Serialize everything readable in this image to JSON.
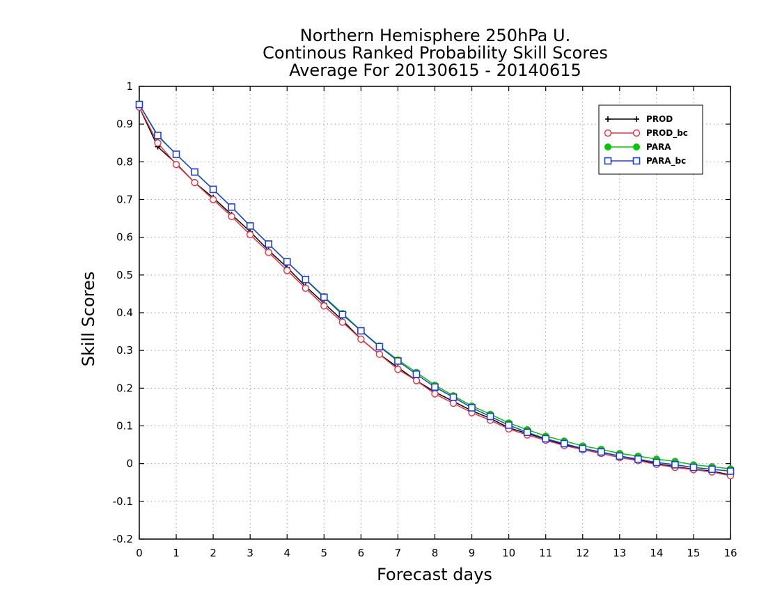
{
  "chart_data": {
    "type": "line",
    "title": [
      "Northern Hemisphere 250hPa U.",
      "Continous Ranked Probability Skill Scores",
      "Average For 20130615 - 20140615"
    ],
    "xlabel": "Forecast days",
    "ylabel": "Skill Scores",
    "xlim": [
      0,
      16
    ],
    "ylim": [
      -0.2,
      1
    ],
    "xticks": [
      0,
      1,
      2,
      3,
      4,
      5,
      6,
      7,
      8,
      9,
      10,
      11,
      12,
      13,
      14,
      15,
      16
    ],
    "xtick_labels": [
      "0",
      "1",
      "2",
      "3",
      "4",
      "5",
      "6",
      "7",
      "8",
      "9",
      "10",
      "11",
      "12",
      "13",
      "14",
      "15",
      "16"
    ],
    "yticks": [
      -0.2,
      -0.1,
      0,
      0.1,
      0.2,
      0.3,
      0.4,
      0.5,
      0.6,
      0.7,
      0.8,
      0.9,
      1
    ],
    "ytick_labels": [
      "-0.2",
      "-0.1",
      "0",
      "0.1",
      "0.2",
      "0.3",
      "0.4",
      "0.5",
      "0.6",
      "0.7",
      "0.8",
      "0.9",
      "1"
    ],
    "grid": true,
    "legend_position": "top-right",
    "x": [
      0,
      0.5,
      1,
      1.5,
      2,
      2.5,
      3,
      3.5,
      4,
      4.5,
      5,
      5.5,
      6,
      6.5,
      7,
      7.5,
      8,
      8.5,
      9,
      9.5,
      10,
      10.5,
      11,
      11.5,
      12,
      12.5,
      13,
      13.5,
      14,
      14.5,
      15,
      15.5,
      16
    ],
    "series": [
      {
        "name": "PROD",
        "color": "#000000",
        "marker": "plus",
        "values": [
          0.945,
          0.84,
          0.795,
          0.745,
          0.705,
          0.66,
          0.615,
          0.565,
          0.52,
          0.47,
          0.425,
          0.38,
          0.33,
          0.29,
          0.255,
          0.22,
          0.19,
          0.165,
          0.14,
          0.12,
          0.095,
          0.08,
          0.065,
          0.05,
          0.04,
          0.03,
          0.02,
          0.01,
          0.0,
          -0.008,
          -0.015,
          -0.02,
          -0.03
        ]
      },
      {
        "name": "PROD_bc",
        "color": "#e8323c",
        "marker": "circle-open",
        "values": [
          0.945,
          0.85,
          0.793,
          0.745,
          0.7,
          0.655,
          0.607,
          0.56,
          0.512,
          0.465,
          0.418,
          0.375,
          0.33,
          0.29,
          0.25,
          0.22,
          0.185,
          0.16,
          0.135,
          0.115,
          0.092,
          0.076,
          0.062,
          0.048,
          0.037,
          0.027,
          0.016,
          0.008,
          -0.002,
          -0.01,
          -0.016,
          -0.022,
          -0.032
        ]
      },
      {
        "name": "PARA",
        "color": "#00c800",
        "marker": "circle-filled",
        "values": [
          0.952,
          0.868,
          0.82,
          0.773,
          0.727,
          0.68,
          0.63,
          0.582,
          0.535,
          0.489,
          0.443,
          0.398,
          0.353,
          0.312,
          0.275,
          0.242,
          0.208,
          0.18,
          0.153,
          0.131,
          0.108,
          0.09,
          0.073,
          0.06,
          0.047,
          0.038,
          0.027,
          0.02,
          0.012,
          0.006,
          -0.003,
          -0.008,
          -0.014
        ]
      },
      {
        "name": "PARA_bc",
        "color": "#1e3cdc",
        "marker": "square-open",
        "values": [
          0.952,
          0.87,
          0.82,
          0.773,
          0.727,
          0.68,
          0.63,
          0.582,
          0.535,
          0.488,
          0.441,
          0.395,
          0.352,
          0.31,
          0.272,
          0.237,
          0.203,
          0.176,
          0.148,
          0.125,
          0.102,
          0.083,
          0.066,
          0.053,
          0.04,
          0.031,
          0.02,
          0.012,
          0.003,
          -0.003,
          -0.01,
          -0.015,
          -0.02
        ]
      }
    ]
  }
}
